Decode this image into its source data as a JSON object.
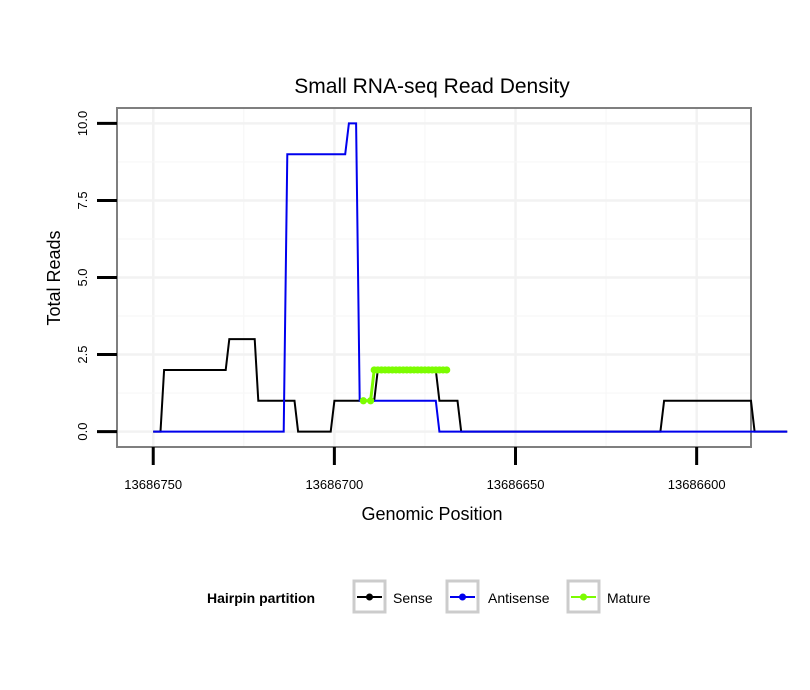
{
  "chart_data": {
    "type": "line",
    "title": "Small RNA-seq Read Density",
    "xlabel": "Genomic Position",
    "ylabel": "Total Reads",
    "x_reversed": true,
    "xlim": [
      13686756,
      13686583
    ],
    "ylim": [
      -0.5,
      10.5
    ],
    "x_ticks": [
      13686750,
      13686700,
      13686650,
      13686600
    ],
    "x_tick_labels": [
      "13686750",
      "13686700",
      "13686650",
      "13686600"
    ],
    "y_ticks": [
      0,
      2.5,
      5,
      7.5,
      10
    ],
    "y_tick_labels": [
      "0.0",
      "2.5",
      "5.0",
      "7.5",
      "10.0"
    ],
    "grid": true,
    "legend": {
      "title": "Hairpin partition",
      "position": "bottom",
      "entries": [
        "Sense",
        "Antisense",
        "Mature"
      ]
    },
    "series": [
      {
        "name": "Sense",
        "color": "#000000",
        "x": [
          13686750,
          13686748,
          13686747,
          13686730,
          13686729,
          13686722,
          13686721,
          13686711,
          13686710,
          13686701,
          13686700,
          13686689,
          13686688,
          13686672,
          13686671,
          13686666,
          13686665,
          13686610,
          13686609,
          13686585,
          13686584,
          13686575
        ],
        "y": [
          0,
          0,
          2,
          2,
          3,
          3,
          1,
          1,
          0,
          0,
          1,
          1,
          2,
          2,
          1,
          1,
          0,
          0,
          1,
          1,
          0,
          0
        ]
      },
      {
        "name": "Antisense",
        "color": "#0000ee",
        "x": [
          13686750,
          13686714,
          13686713,
          13686697,
          13686696,
          13686694,
          13686693,
          13686689,
          13686688,
          13686672,
          13686671,
          13686575
        ],
        "y": [
          0,
          0,
          9,
          9,
          10,
          10,
          1,
          1,
          1,
          1,
          0,
          0
        ]
      },
      {
        "name": "Mature",
        "color": "#7cfc00",
        "x": [
          13686692,
          13686690,
          13686689,
          13686688,
          13686687,
          13686686,
          13686685,
          13686684,
          13686683,
          13686682,
          13686681,
          13686680,
          13686679,
          13686678,
          13686677,
          13686676,
          13686675,
          13686674,
          13686673,
          13686672,
          13686671,
          13686670,
          13686669
        ],
        "y": [
          1,
          1,
          2,
          2,
          2,
          2,
          2,
          2,
          2,
          2,
          2,
          2,
          2,
          2,
          2,
          2,
          2,
          2,
          2,
          2,
          2,
          2,
          2
        ]
      }
    ]
  }
}
